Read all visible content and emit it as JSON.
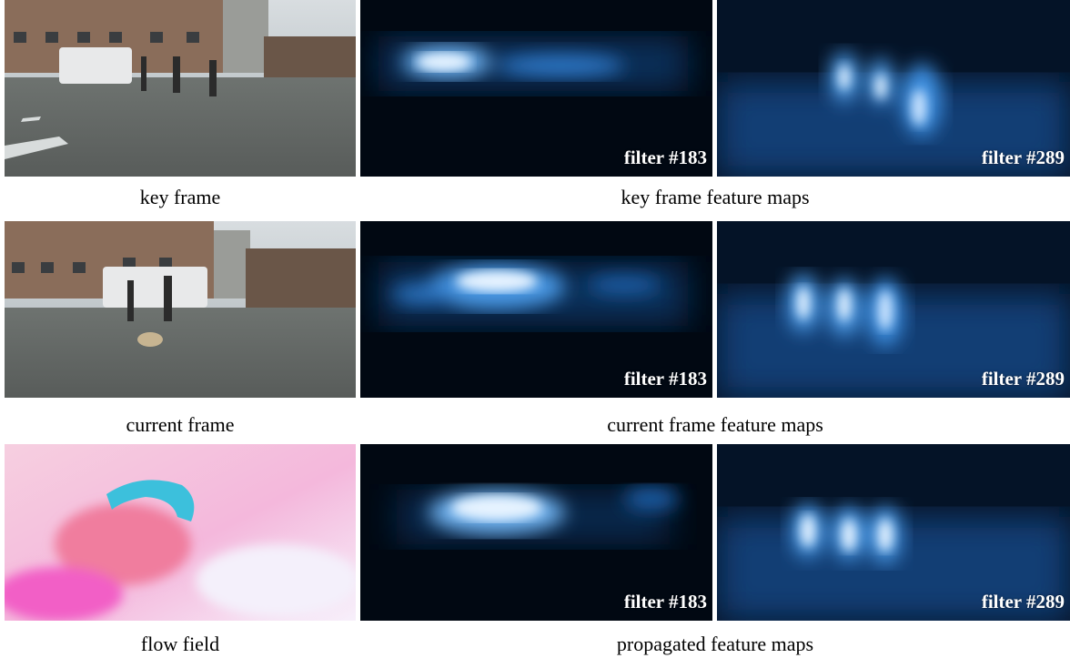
{
  "rows": [
    {
      "left_caption": "key frame",
      "right_caption": "key frame feature maps",
      "filter_a": "filter #183",
      "filter_b": "filter #289"
    },
    {
      "left_caption": "current frame",
      "right_caption": "current frame feature maps",
      "filter_a": "filter #183",
      "filter_b": "filter #289"
    },
    {
      "left_caption": "flow field",
      "right_caption": "propagated feature maps",
      "filter_a": "filter #183",
      "filter_b": "filter #289"
    }
  ],
  "colors": {
    "feature_bg": "#020a16",
    "feature_glow": "#3d8fe0",
    "feature_peak": "#e6f3ff"
  }
}
